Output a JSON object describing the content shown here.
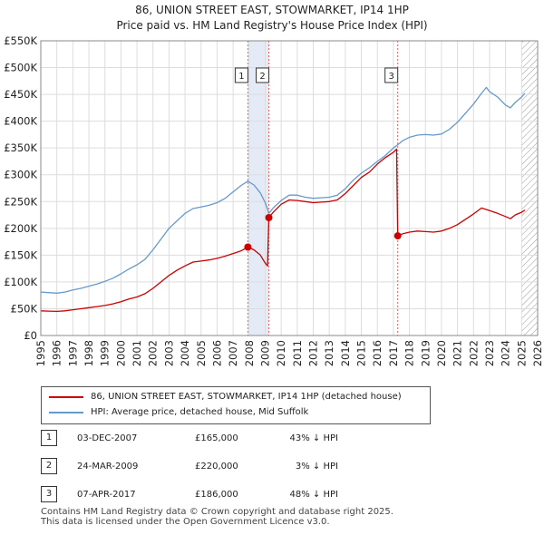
{
  "chart_data": {
    "type": "line",
    "title": "86, UNION STREET EAST, STOWMARKET, IP14 1HP",
    "subtitle": "Price paid vs. HM Land Registry's House Price Index (HPI)",
    "xlim": [
      1995,
      2026
    ],
    "ylim": [
      0,
      550000
    ],
    "x_ticks": [
      1995,
      1996,
      1997,
      1998,
      1999,
      2000,
      2001,
      2002,
      2003,
      2004,
      2005,
      2006,
      2007,
      2008,
      2009,
      2010,
      2011,
      2012,
      2013,
      2014,
      2015,
      2016,
      2017,
      2018,
      2019,
      2020,
      2021,
      2022,
      2023,
      2024,
      2025,
      2026
    ],
    "y_ticks": [
      {
        "value": 0,
        "label": "£0"
      },
      {
        "value": 50000,
        "label": "£50K"
      },
      {
        "value": 100000,
        "label": "£100K"
      },
      {
        "value": 150000,
        "label": "£150K"
      },
      {
        "value": 200000,
        "label": "£200K"
      },
      {
        "value": 250000,
        "label": "£250K"
      },
      {
        "value": 300000,
        "label": "£300K"
      },
      {
        "value": 350000,
        "label": "£350K"
      },
      {
        "value": 400000,
        "label": "£400K"
      },
      {
        "value": 450000,
        "label": "£450K"
      },
      {
        "value": 500000,
        "label": "£500K"
      },
      {
        "value": 550000,
        "label": "£550K"
      }
    ],
    "grid": true,
    "hatched_after": 2025.0,
    "shaded_bands": [
      [
        2007.92,
        2009.23
      ]
    ],
    "series": [
      {
        "name": "86, UNION STREET EAST, STOWMARKET, IP14 1HP (detached house)",
        "color": "#cc0000",
        "points": [
          [
            1995.0,
            46000
          ],
          [
            1995.5,
            45500
          ],
          [
            1996.0,
            45000
          ],
          [
            1996.5,
            46000
          ],
          [
            1997.0,
            48000
          ],
          [
            1997.5,
            50000
          ],
          [
            1998.0,
            52000
          ],
          [
            1998.5,
            54000
          ],
          [
            1999.0,
            56000
          ],
          [
            1999.5,
            59000
          ],
          [
            2000.0,
            63000
          ],
          [
            2000.5,
            68000
          ],
          [
            2001.0,
            72000
          ],
          [
            2001.5,
            78000
          ],
          [
            2002.0,
            88000
          ],
          [
            2002.5,
            100000
          ],
          [
            2003.0,
            112000
          ],
          [
            2003.5,
            122000
          ],
          [
            2004.0,
            130000
          ],
          [
            2004.5,
            137000
          ],
          [
            2005.0,
            139000
          ],
          [
            2005.5,
            141000
          ],
          [
            2006.0,
            144000
          ],
          [
            2006.5,
            148000
          ],
          [
            2007.0,
            153000
          ],
          [
            2007.5,
            158000
          ],
          [
            2007.92,
            165000
          ],
          [
            2008.3,
            160000
          ],
          [
            2008.7,
            150000
          ],
          [
            2009.0,
            135000
          ],
          [
            2009.15,
            130000
          ],
          [
            2009.23,
            220000
          ],
          [
            2009.5,
            230000
          ],
          [
            2010.0,
            245000
          ],
          [
            2010.5,
            253000
          ],
          [
            2011.0,
            252000
          ],
          [
            2011.5,
            250000
          ],
          [
            2012.0,
            248000
          ],
          [
            2012.5,
            249000
          ],
          [
            2013.0,
            250000
          ],
          [
            2013.5,
            253000
          ],
          [
            2014.0,
            265000
          ],
          [
            2014.5,
            280000
          ],
          [
            2015.0,
            295000
          ],
          [
            2015.5,
            305000
          ],
          [
            2016.0,
            320000
          ],
          [
            2016.5,
            332000
          ],
          [
            2017.0,
            342000
          ],
          [
            2017.2,
            348000
          ],
          [
            2017.27,
            186000
          ],
          [
            2017.6,
            190000
          ],
          [
            2018.0,
            193000
          ],
          [
            2018.5,
            195000
          ],
          [
            2019.0,
            194000
          ],
          [
            2019.5,
            193000
          ],
          [
            2020.0,
            195000
          ],
          [
            2020.5,
            200000
          ],
          [
            2021.0,
            207000
          ],
          [
            2021.5,
            217000
          ],
          [
            2022.0,
            227000
          ],
          [
            2022.5,
            238000
          ],
          [
            2023.0,
            233000
          ],
          [
            2023.5,
            228000
          ],
          [
            2024.0,
            222000
          ],
          [
            2024.3,
            218000
          ],
          [
            2024.6,
            225000
          ],
          [
            2025.0,
            230000
          ],
          [
            2025.2,
            234000
          ]
        ]
      },
      {
        "name": "HPI: Average price, detached house, Mid Suffolk",
        "color": "#6699cc",
        "points": [
          [
            1995.0,
            81000
          ],
          [
            1995.5,
            80000
          ],
          [
            1996.0,
            79000
          ],
          [
            1996.5,
            81000
          ],
          [
            1997.0,
            85000
          ],
          [
            1997.5,
            88000
          ],
          [
            1998.0,
            92000
          ],
          [
            1998.5,
            96000
          ],
          [
            1999.0,
            101000
          ],
          [
            1999.5,
            107000
          ],
          [
            2000.0,
            115000
          ],
          [
            2000.5,
            124000
          ],
          [
            2001.0,
            132000
          ],
          [
            2001.5,
            142000
          ],
          [
            2002.0,
            160000
          ],
          [
            2002.5,
            180000
          ],
          [
            2003.0,
            200000
          ],
          [
            2003.5,
            214000
          ],
          [
            2004.0,
            228000
          ],
          [
            2004.5,
            237000
          ],
          [
            2005.0,
            240000
          ],
          [
            2005.5,
            243000
          ],
          [
            2006.0,
            248000
          ],
          [
            2006.5,
            256000
          ],
          [
            2007.0,
            268000
          ],
          [
            2007.5,
            280000
          ],
          [
            2007.92,
            288000
          ],
          [
            2008.3,
            281000
          ],
          [
            2008.7,
            266000
          ],
          [
            2009.0,
            248000
          ],
          [
            2009.23,
            228000
          ],
          [
            2009.5,
            238000
          ],
          [
            2010.0,
            252000
          ],
          [
            2010.5,
            262000
          ],
          [
            2011.0,
            262000
          ],
          [
            2011.5,
            258000
          ],
          [
            2012.0,
            256000
          ],
          [
            2012.5,
            257000
          ],
          [
            2013.0,
            258000
          ],
          [
            2013.5,
            262000
          ],
          [
            2014.0,
            274000
          ],
          [
            2014.5,
            290000
          ],
          [
            2015.0,
            303000
          ],
          [
            2015.5,
            313000
          ],
          [
            2016.0,
            325000
          ],
          [
            2016.5,
            336000
          ],
          [
            2017.0,
            350000
          ],
          [
            2017.27,
            356000
          ],
          [
            2017.6,
            364000
          ],
          [
            2018.0,
            370000
          ],
          [
            2018.5,
            374000
          ],
          [
            2019.0,
            375000
          ],
          [
            2019.5,
            374000
          ],
          [
            2020.0,
            376000
          ],
          [
            2020.5,
            385000
          ],
          [
            2021.0,
            398000
          ],
          [
            2021.5,
            415000
          ],
          [
            2022.0,
            432000
          ],
          [
            2022.5,
            452000
          ],
          [
            2022.8,
            463000
          ],
          [
            2023.0,
            455000
          ],
          [
            2023.5,
            445000
          ],
          [
            2024.0,
            430000
          ],
          [
            2024.3,
            425000
          ],
          [
            2024.6,
            435000
          ],
          [
            2025.0,
            445000
          ],
          [
            2025.2,
            452000
          ]
        ]
      }
    ],
    "sales": [
      {
        "label": "1",
        "x": 2007.92,
        "y": 165000
      },
      {
        "label": "2",
        "x": 2009.23,
        "y": 220000
      },
      {
        "label": "3",
        "x": 2017.27,
        "y": 186000
      }
    ]
  },
  "legend": {
    "property_label": "86, UNION STREET EAST, STOWMARKET, IP14 1HP (detached house)",
    "property_color": "#cc0000",
    "hpi_label": "HPI: Average price, detached house, Mid Suffolk",
    "hpi_color": "#6699cc"
  },
  "sales_table": [
    {
      "num": "1",
      "date": "03-DEC-2007",
      "price": "£165,000",
      "hpi": "43% ↓ HPI"
    },
    {
      "num": "2",
      "date": "24-MAR-2009",
      "price": "£220,000",
      "hpi": "3% ↓ HPI"
    },
    {
      "num": "3",
      "date": "07-APR-2017",
      "price": "£186,000",
      "hpi": "48% ↓ HPI"
    }
  ],
  "footer": {
    "line1": "Contains HM Land Registry data © Crown copyright and database right 2025.",
    "line2": "This data is licensed under the Open Government Licence v3.0."
  }
}
